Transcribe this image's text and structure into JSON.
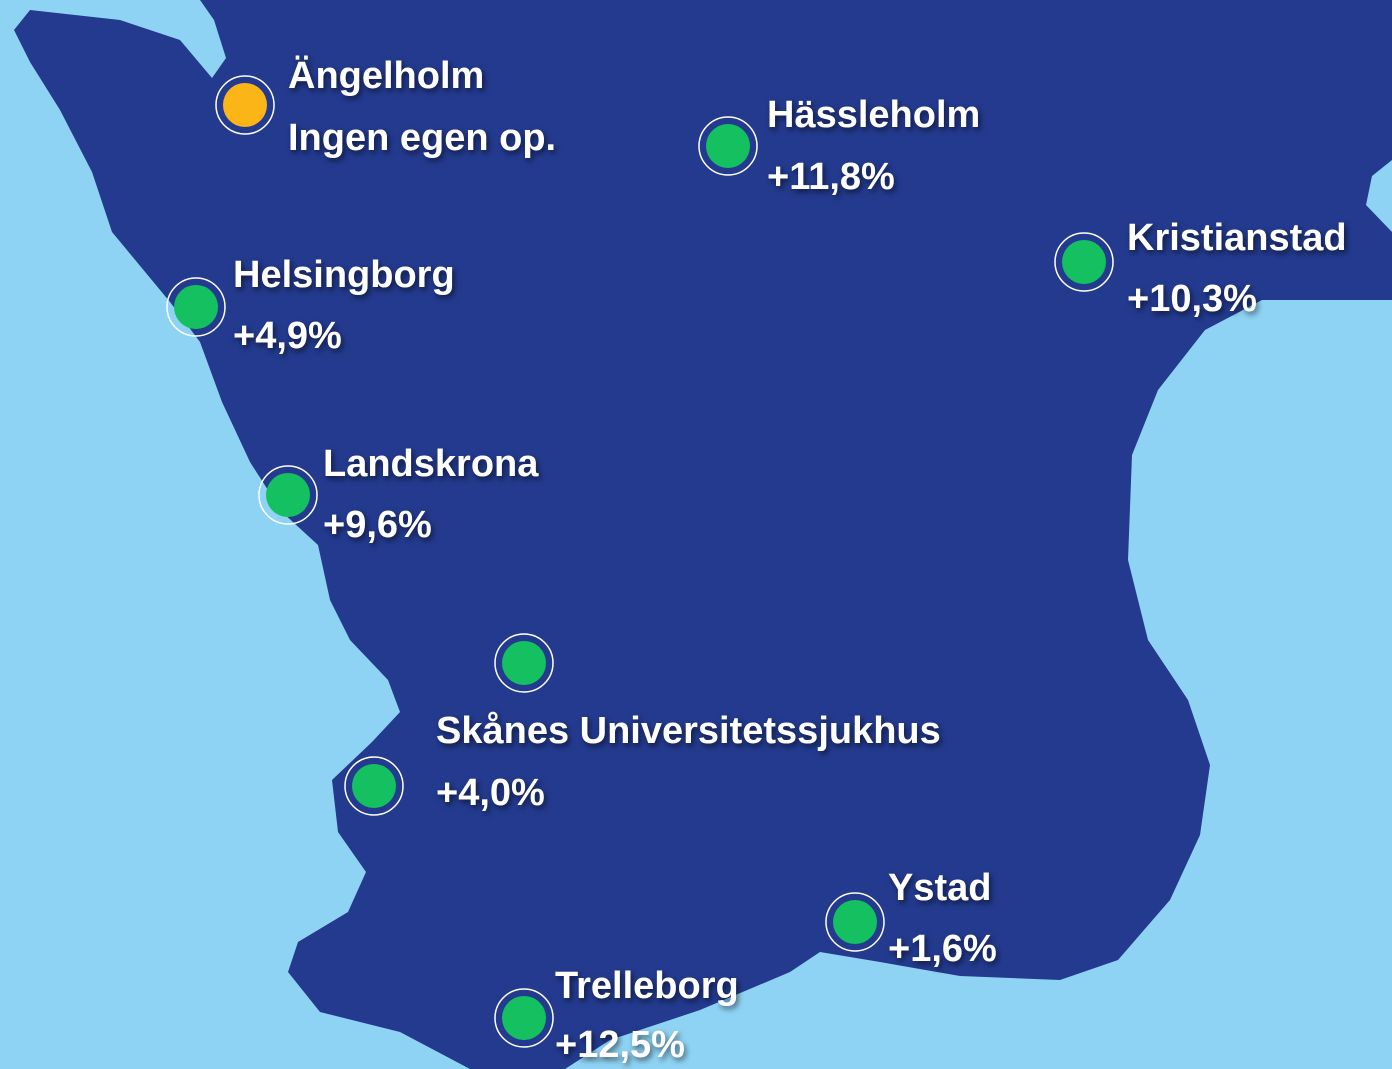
{
  "locations": [
    {
      "name": "Ängelholm",
      "value": "Ingen egen op."
    },
    {
      "name": "Hässleholm",
      "value": "+11,8%"
    },
    {
      "name": "Kristianstad",
      "value": "+10,3%"
    },
    {
      "name": "Helsingborg",
      "value": "+4,9%"
    },
    {
      "name": "Landskrona",
      "value": "+9,6%"
    },
    {
      "name": "Skånes Universitetssjukhus",
      "value": "+4,0%"
    },
    {
      "name": "Ystad",
      "value": "+1,6%"
    },
    {
      "name": "Trelleborg",
      "value": "+12,5%"
    }
  ]
}
